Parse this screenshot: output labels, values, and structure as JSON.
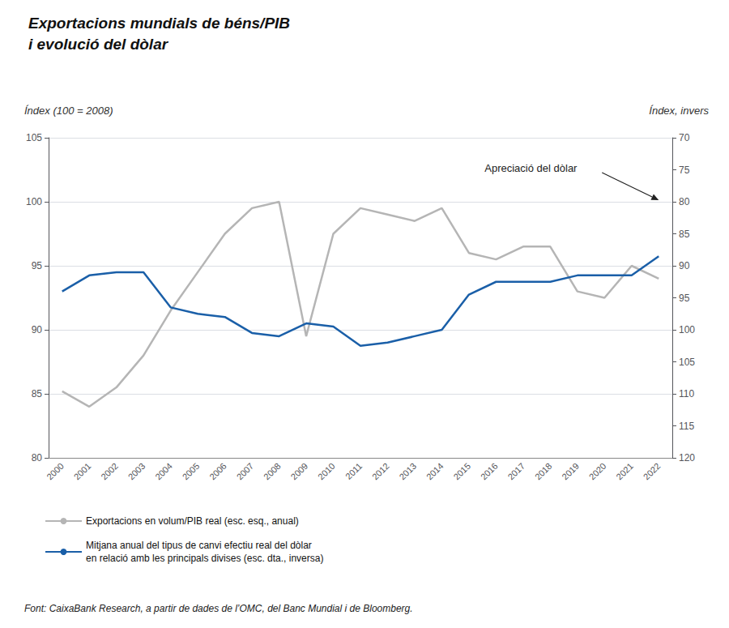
{
  "chart_data": {
    "type": "line",
    "title": "Exportacions mundials de béns/PIB\ni evolució del dòlar",
    "ylabel": "Índex (100 = 2008)",
    "y2label": "Índex, invers",
    "x": [
      2000,
      2001,
      2002,
      2003,
      2004,
      2005,
      2006,
      2007,
      2008,
      2009,
      2010,
      2011,
      2012,
      2013,
      2014,
      2015,
      2016,
      2017,
      2018,
      2019,
      2020,
      2021,
      2022
    ],
    "xlim": [
      1999.5,
      2022.5
    ],
    "xticks": [
      2000,
      2001,
      2002,
      2003,
      2004,
      2005,
      2006,
      2007,
      2008,
      2009,
      2010,
      2011,
      2012,
      2013,
      2014,
      2015,
      2016,
      2017,
      2018,
      2019,
      2020,
      2021,
      2022
    ],
    "ylim": [
      80,
      105
    ],
    "yticks": [
      80,
      85,
      90,
      95,
      100,
      105
    ],
    "y2lim": [
      120,
      70
    ],
    "y2ticks": [
      70,
      75,
      80,
      85,
      90,
      95,
      100,
      105,
      110,
      115,
      120
    ],
    "grid": true,
    "legend": "bottom",
    "series": [
      {
        "name": "Exportacions en volum/PIB real (esc. esq., anual)",
        "color": "#b5b5b5",
        "axis": "y",
        "values": [
          85.2,
          84.0,
          85.5,
          88.0,
          91.5,
          94.5,
          97.5,
          99.5,
          100.0,
          89.5,
          97.5,
          99.5,
          99.0,
          98.5,
          99.5,
          96.0,
          95.5,
          96.5,
          96.5,
          93.0,
          92.5,
          95.0,
          94.0
        ]
      },
      {
        "name": "Mitjana anual del tipus de canvi efectiu real del dòlar\nen relació amb les principals divises (esc. dta., inversa)",
        "color": "#1a5fa8",
        "axis": "y2",
        "values": [
          94.0,
          91.5,
          91.0,
          91.0,
          96.5,
          97.5,
          98.0,
          100.5,
          101.0,
          99.0,
          99.5,
          102.5,
          102.0,
          101.0,
          100.0,
          94.5,
          92.5,
          92.5,
          92.5,
          91.5,
          91.5,
          91.5,
          88.5
        ]
      }
    ],
    "annotations": [
      {
        "text": "Apreciació del dòlar",
        "x": 2022,
        "y": 80,
        "axis": "y2"
      }
    ],
    "source": "Font: CaixaBank Research, a partir de dades de l’OMC, del Banc Mundial i de Bloomberg."
  }
}
